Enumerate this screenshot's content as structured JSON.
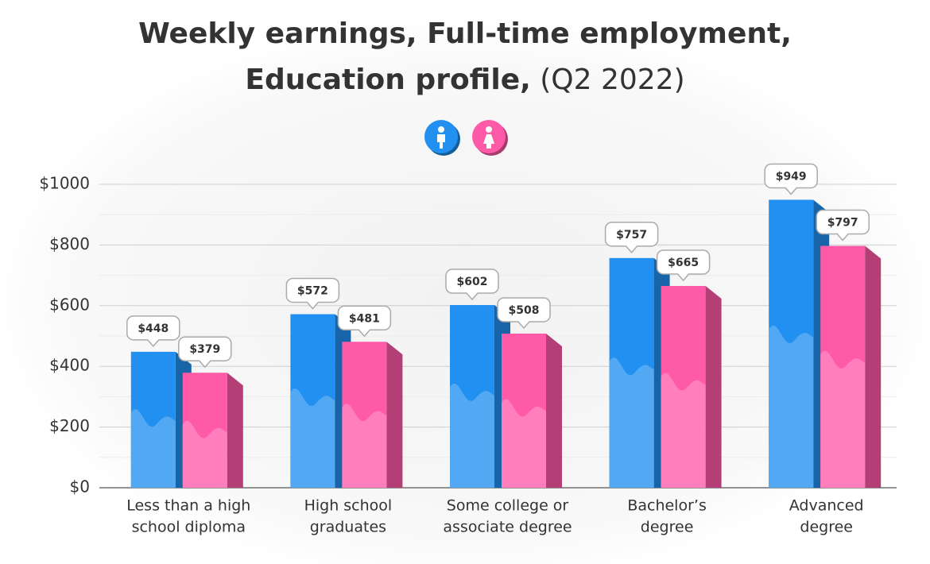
{
  "chart_data": {
    "type": "bar3d",
    "title": [
      "Weekly earnings, Full-time employment,",
      "Education profile,"
    ],
    "title_suffix": "(Q2 2022)",
    "categories": [
      [
        "Less than a high",
        "school diploma"
      ],
      [
        "High school",
        "graduates"
      ],
      [
        "Some college or",
        "associate degree"
      ],
      [
        "Bachelor’s",
        "degree"
      ],
      [
        "Advanced",
        "degree"
      ]
    ],
    "series": [
      {
        "color": "#2190f0",
        "values": [
          448,
          572,
          602,
          757,
          949
        ],
        "value_labels": [
          "$448",
          "$572",
          "$602",
          "$757",
          "$949"
        ]
      },
      {
        "color": "#ff5aa8",
        "values": [
          379,
          481,
          508,
          665,
          797
        ],
        "value_labels": [
          "$379",
          "$481",
          "$508",
          "$665",
          "$797"
        ]
      }
    ],
    "ylim": [
      0,
      1000
    ],
    "yticks": [
      {
        "value": 0,
        "label": "$0"
      },
      {
        "value": 200,
        "label": "$200"
      },
      {
        "value": 400,
        "label": "$400"
      },
      {
        "value": 600,
        "label": "$600"
      },
      {
        "value": 800,
        "label": "$800"
      },
      {
        "value": 1000,
        "label": "$1000"
      }
    ],
    "minor_yticks": [
      100,
      300,
      500,
      700,
      900
    ],
    "grid": true
  }
}
